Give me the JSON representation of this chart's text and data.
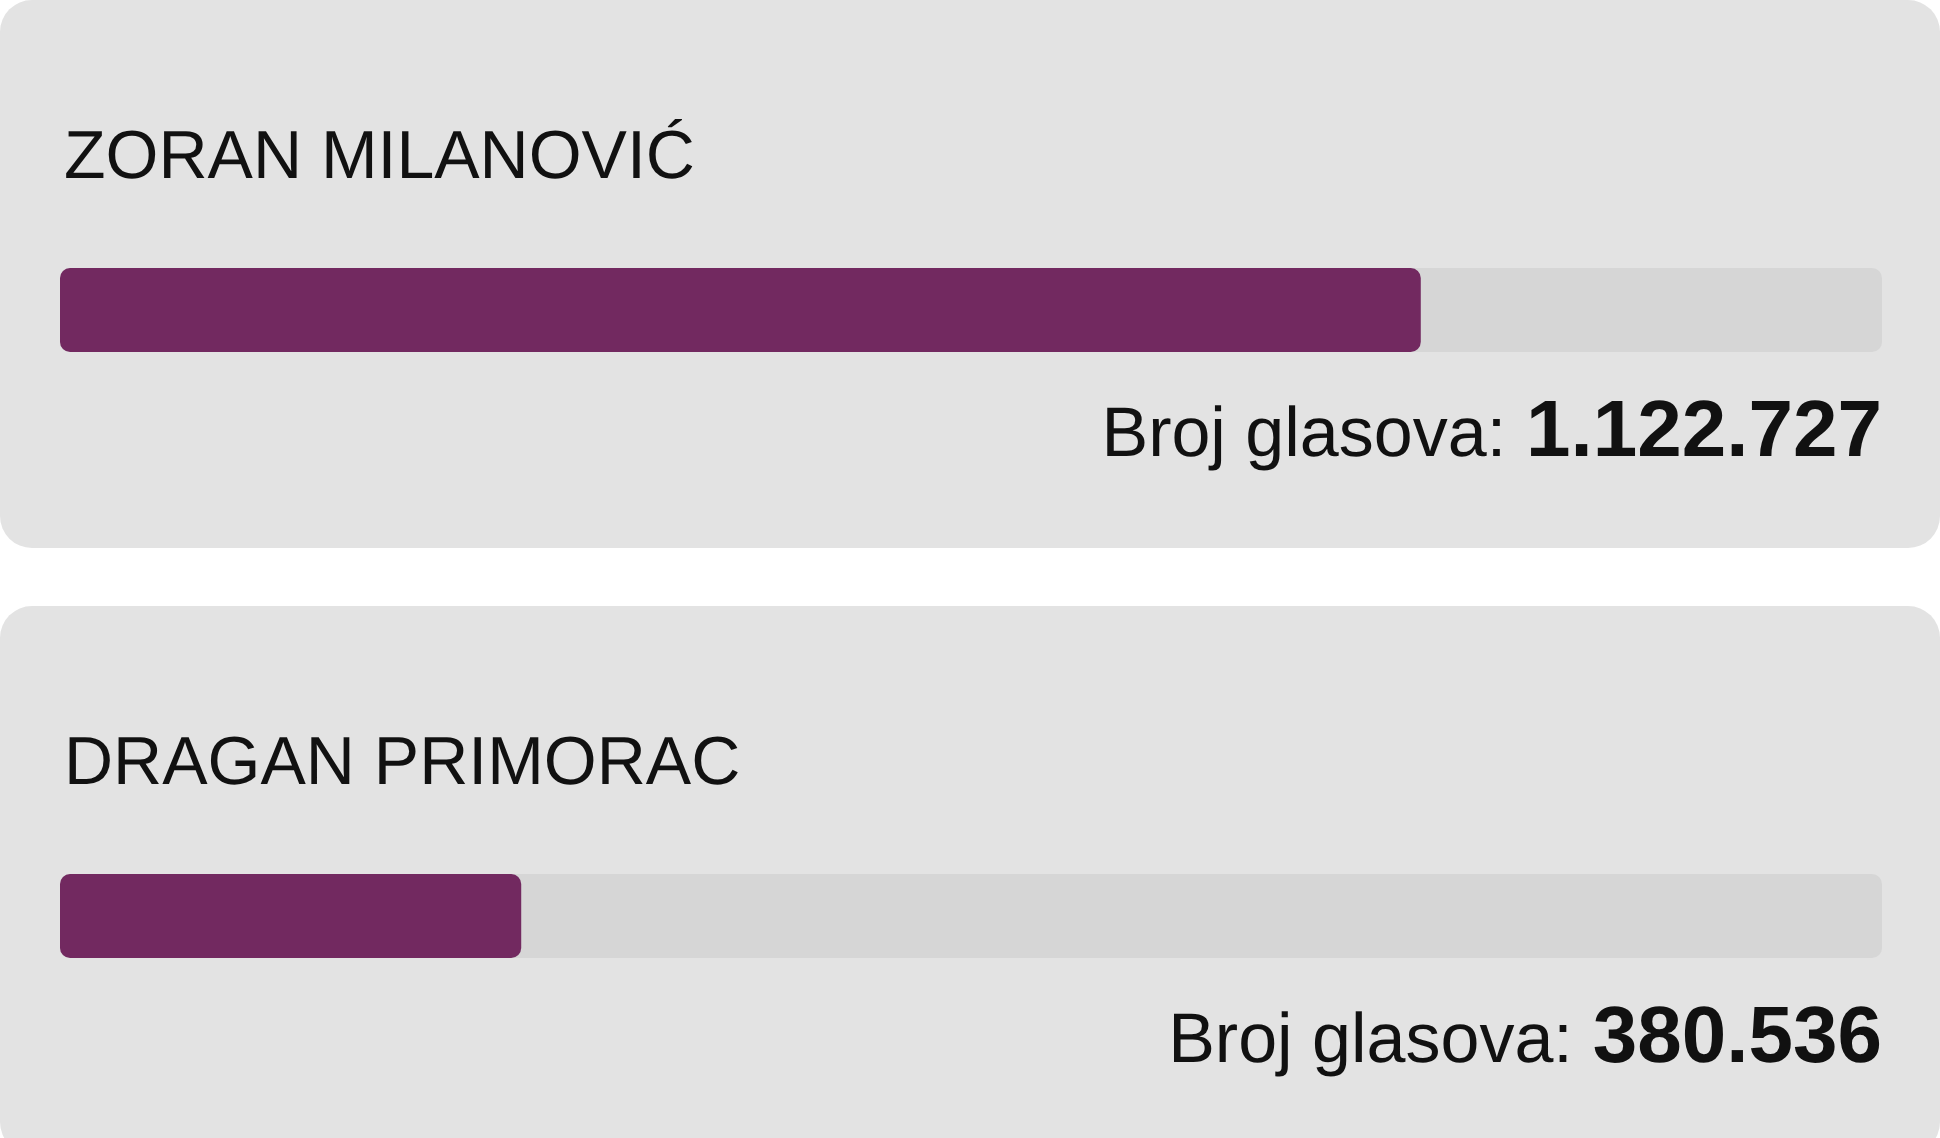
{
  "chart_data": {
    "type": "bar",
    "orientation": "horizontal",
    "categories": [
      "ZORAN MILANOVIĆ",
      "DRAGAN PRIMORAC"
    ],
    "values": [
      1122727,
      380536
    ],
    "value_labels": [
      "1.122.727",
      "380.536"
    ],
    "color": "#722960",
    "xlabel": "Broj glasova:",
    "xlim": [
      0,
      1503263
    ],
    "tick_labels": "y"
  }
}
